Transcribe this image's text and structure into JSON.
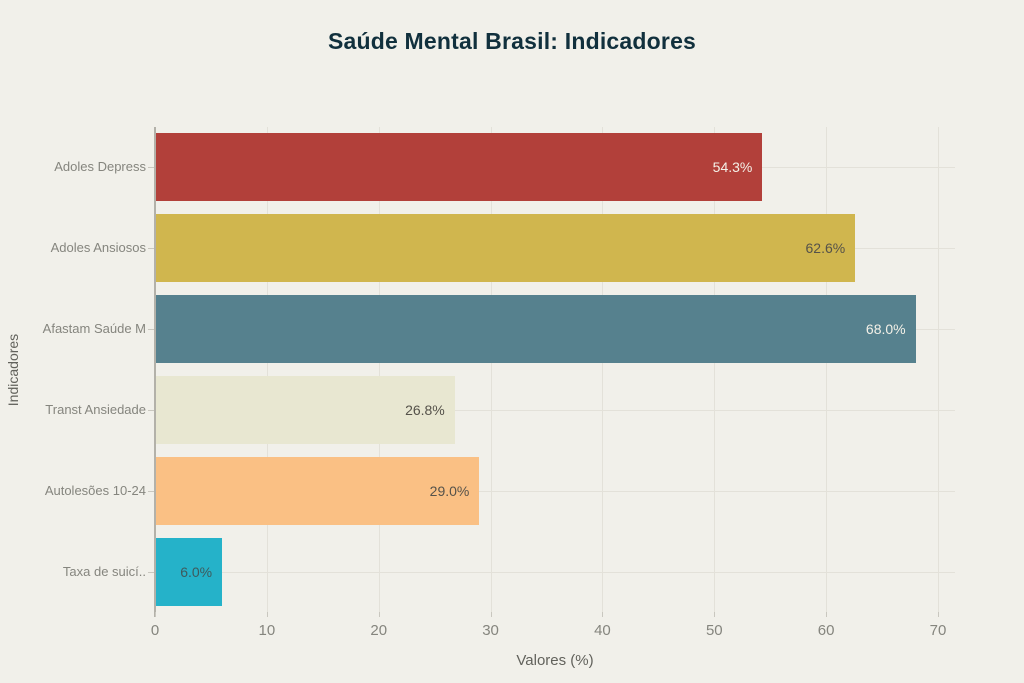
{
  "title": "Saúde Mental Brasil: Indicadores",
  "chart_data": {
    "type": "bar",
    "orientation": "horizontal",
    "title": "Saúde Mental Brasil: Indicadores",
    "categories": [
      "Adoles Depress",
      "Adoles Ansiosos",
      "Afastam Saúde M",
      "Transt Ansiedade",
      "Autolesões 10-24",
      "Taxa de suicí.."
    ],
    "values": [
      54.3,
      62.6,
      68.0,
      26.8,
      29.0,
      6.0
    ],
    "value_labels": [
      "54.3%",
      "62.6%",
      "68.0%",
      "26.8%",
      "29.0%",
      "6.0%"
    ],
    "bar_colors": [
      "#b2403a",
      "#d0b64e",
      "#56818e",
      "#e8e7d1",
      "#fac084",
      "#25b2c9"
    ],
    "value_label_colors": [
      "#f4f1e8",
      "#55524a",
      "#f4f1e8",
      "#55524a",
      "#55524a",
      "#3e5a5c"
    ],
    "xlabel": "Valores (%)",
    "ylabel": "Indicadores",
    "xlim": [
      0,
      70
    ],
    "xticks": [
      "0",
      "10",
      "20",
      "30",
      "40",
      "50",
      "60",
      "70"
    ],
    "grid": true,
    "legend": "none"
  },
  "colors": {
    "background": "#f1f0ea",
    "title": "#11303d",
    "grid": "#e3e1d9",
    "axis": "#b3b1a9",
    "tick_mark": "#c9c7bf",
    "tick_label": "#85857e",
    "category_label": "#85857e",
    "axis_label": "#62625c"
  }
}
